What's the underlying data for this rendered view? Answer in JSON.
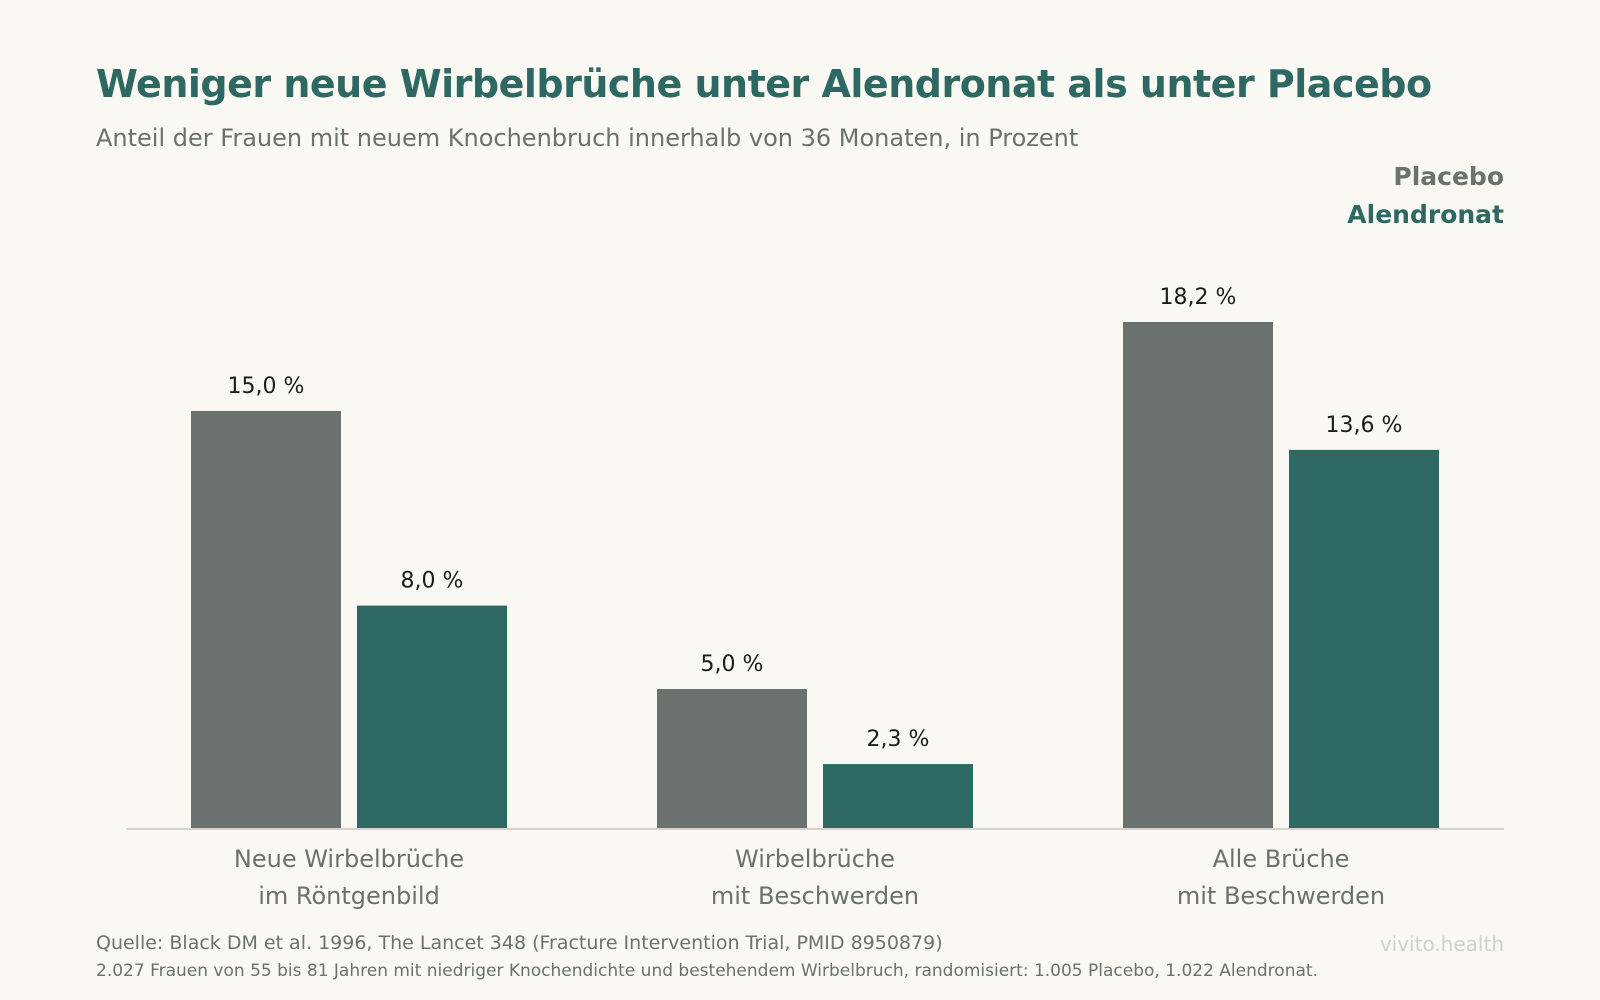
{
  "header": {
    "title": "Weniger neue Wirbelbrüche unter Alendronat als unter Placebo",
    "subtitle": "Anteil der Frauen mit neuem Knochenbruch innerhalb von 36 Monaten, in Prozent"
  },
  "legend": {
    "placebo": "Placebo",
    "alendronat": "Alendronat"
  },
  "colors": {
    "placebo": "#6b716e",
    "alendronat": "#2d6962",
    "background": "#faf8f2"
  },
  "chart_data": {
    "type": "bar",
    "categories": [
      [
        "Neue Wirbelbrüche",
        "im Röntgenbild"
      ],
      [
        "Wirbelbrüche",
        "mit Beschwerden"
      ],
      [
        "Alle Brüche",
        "mit Beschwerden"
      ]
    ],
    "series": [
      {
        "name": "Placebo",
        "values": [
          15.0,
          5.0,
          18.2
        ],
        "labels": [
          "15,0 %",
          "5,0 %",
          "18,2 %"
        ]
      },
      {
        "name": "Alendronat",
        "values": [
          8.0,
          2.3,
          13.6
        ],
        "labels": [
          "8,0 %",
          "2,3 %",
          "13,6 %"
        ]
      }
    ],
    "title": "Weniger neue Wirbelbrüche unter Alendronat als unter Placebo",
    "xlabel": "",
    "ylabel": "",
    "ylim": [
      0,
      20
    ],
    "grid": false,
    "legend_position": "top-right"
  },
  "footer": {
    "source": "Quelle: Black DM et al. 1996, The Lancet 348 (Fracture Intervention Trial, PMID 8950879)",
    "note": "2.027 Frauen von 55 bis 81 Jahren mit niedriger Knochendichte und bestehendem Wirbelbruch, randomisiert: 1.005 Placebo, 1.022 Alendronat.",
    "brand": "vivito.health"
  }
}
